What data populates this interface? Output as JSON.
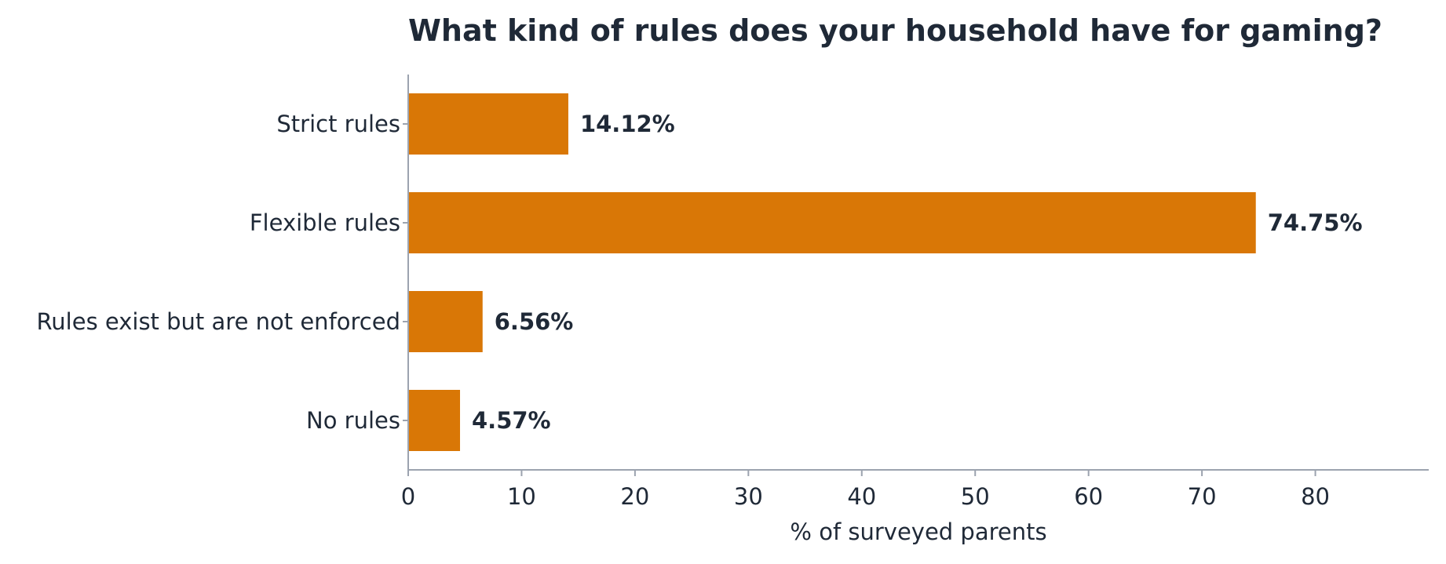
{
  "chart_data": {
    "type": "bar",
    "orientation": "horizontal",
    "title": "What kind of rules does your household have for gaming?",
    "xlabel": "% of surveyed parents",
    "ylabel": "",
    "categories": [
      "Strict rules",
      "Flexible rules",
      "Rules exist but are not enforced",
      "No rules"
    ],
    "values": [
      14.12,
      74.75,
      6.56,
      4.57
    ],
    "value_labels": [
      "14.12%",
      "74.75%",
      "6.56%",
      "4.57%"
    ],
    "xlim": [
      0,
      90
    ],
    "xticks": [
      0,
      10,
      20,
      30,
      40,
      50,
      60,
      70,
      80
    ],
    "grid": false,
    "legend": "none",
    "colors": {
      "bar": "#d97706",
      "text": "#1f2937",
      "axis": "#9ca3af"
    }
  }
}
